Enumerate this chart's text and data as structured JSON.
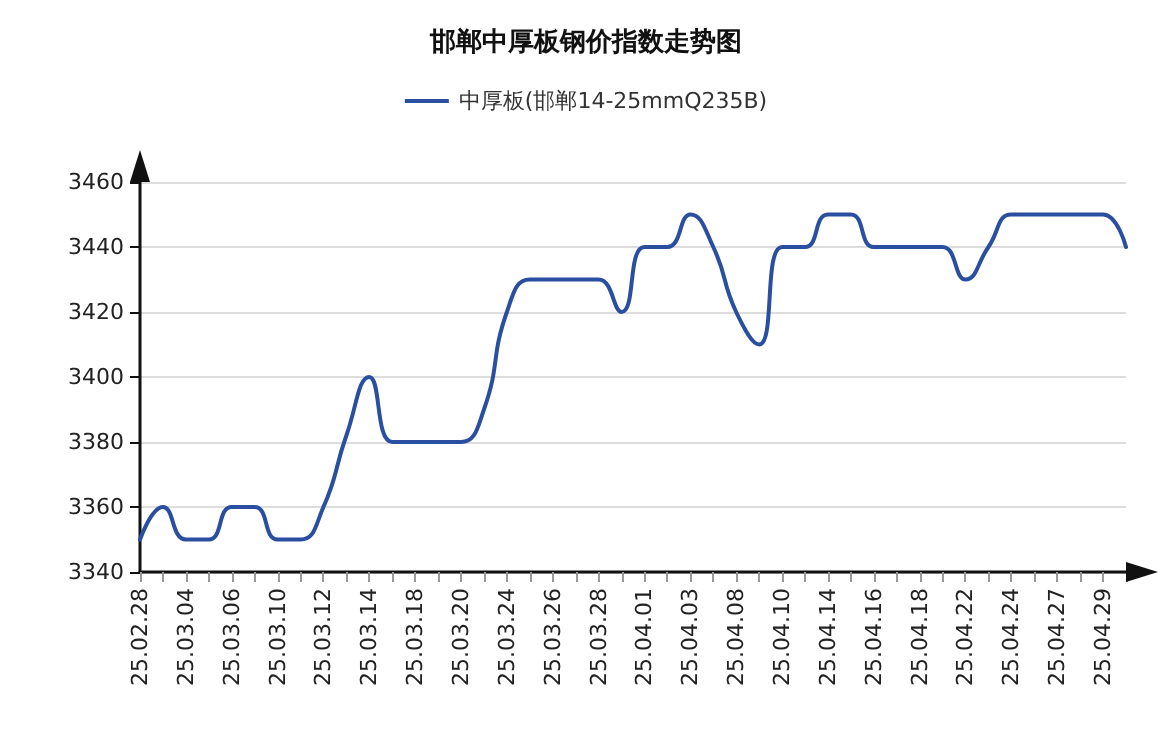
{
  "chart_data": {
    "type": "line",
    "title": "邯郸中厚板钢价指数走势图",
    "categories": [
      "25.02.28",
      null,
      "25.03.04",
      null,
      "25.03.06",
      null,
      "25.03.10",
      null,
      "25.03.12",
      null,
      "25.03.14",
      null,
      "25.03.18",
      null,
      "25.03.20",
      null,
      "25.03.24",
      null,
      "25.03.26",
      null,
      "25.03.28",
      null,
      "25.04.01",
      null,
      "25.04.03",
      null,
      "25.04.08",
      null,
      "25.04.10",
      null,
      "25.04.14",
      null,
      "25.04.16",
      null,
      "25.04.18",
      null,
      "25.04.22",
      null,
      "25.04.24",
      null,
      "25.04.27",
      null,
      "25.04.29",
      null
    ],
    "series": [
      {
        "name": "中厚板(邯郸14-25mmQ235B)",
        "color": "#2b4fa0",
        "values": [
          3350,
          3360,
          3350,
          3350,
          3360,
          3360,
          3350,
          3350,
          3360,
          3382,
          3400,
          3380,
          3380,
          3380,
          3380,
          3390,
          3420,
          3430,
          3430,
          3430,
          3430,
          3420,
          3440,
          3440,
          3450,
          3440,
          3420,
          3410,
          3440,
          3440,
          3450,
          3450,
          3440,
          3440,
          3440,
          3440,
          3430,
          3440,
          3450,
          3450,
          3450,
          3450,
          3450,
          3440
        ]
      }
    ],
    "ylim": [
      3340,
      3460
    ],
    "yticks": [
      3340,
      3360,
      3380,
      3400,
      3420,
      3440,
      3460
    ],
    "grid": "y",
    "legend": "top",
    "marker": "none",
    "line_style": "solid"
  }
}
